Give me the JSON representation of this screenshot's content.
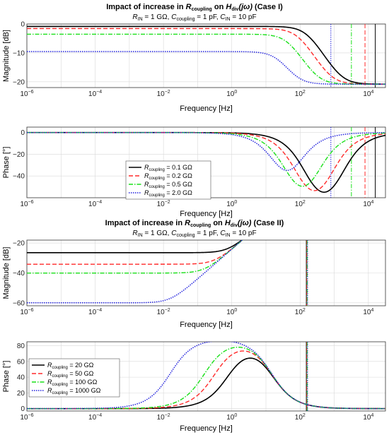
{
  "chart_data": [
    {
      "type": "line",
      "title_html": "Impact of increase in <tspan font-style='italic'>R</tspan><tspan font-size='7' dy='2'>coupling</tspan><tspan dy='-2'> on </tspan><tspan font-style='italic'>H</tspan><tspan font-size='7' dy='2'>div</tspan><tspan dy='-2' font-style='italic'>(jω)</tspan><tspan> (Case I)</tspan>",
      "subtitle_html": "<tspan font-style='italic'>R</tspan><tspan font-size='7' dy='2'>IN</tspan><tspan dy='-2'> = 1 GΩ, </tspan><tspan font-style='italic'>C</tspan><tspan font-size='7' dy='2'>coupling</tspan><tspan dy='-2'> = 1 pF, </tspan><tspan font-style='italic'>C</tspan><tspan font-size='7' dy='2'>IN</tspan><tspan dy='-2'> = 10 pF</tspan>",
      "xlabel": "Frequency [Hz]",
      "ylabel": "Magnitude [dB]",
      "xscale": "log",
      "xlim": [
        1e-06,
        31623
      ],
      "ylim": [
        -22,
        0
      ],
      "xticks": [
        -6,
        -4,
        -2,
        0,
        2,
        4
      ],
      "yticks": [
        -20,
        -10,
        0
      ],
      "grid": true,
      "kind": "mag1",
      "vlines": [
        15915,
        7958,
        3183,
        796
      ],
      "series": [
        {
          "color": "#000000",
          "dash": "",
          "width": 1.6,
          "R": 0.1
        },
        {
          "color": "#ff2a2a",
          "dash": "6,3",
          "width": 1.4,
          "R": 0.2
        },
        {
          "color": "#19e019",
          "dash": "6,2,1.5,2",
          "width": 1.4,
          "R": 0.5
        },
        {
          "color": "#2222dd",
          "dash": "1.5,1.5",
          "width": 1.5,
          "R": 2.0
        }
      ]
    },
    {
      "type": "line",
      "xlabel": "Frequency [Hz]",
      "ylabel": "Phase [°]",
      "xscale": "log",
      "xlim": [
        1e-06,
        31623
      ],
      "ylim": [
        -60,
        5
      ],
      "xticks": [
        -6,
        -4,
        -2,
        0,
        2,
        4
      ],
      "yticks": [
        -40,
        -20,
        0
      ],
      "grid": true,
      "kind": "ph1",
      "legend": "upper-left-center",
      "vlines": [
        15915,
        7958,
        3183,
        796
      ],
      "series": [
        {
          "name_html": "<tspan font-style='italic'>R</tspan><tspan font-size='6' dy='2'>coupling</tspan><tspan dy='-2'> = 0.1 GΩ</tspan>",
          "color": "#000000",
          "dash": "",
          "width": 1.6,
          "R": 0.1
        },
        {
          "name_html": "<tspan font-style='italic'>R</tspan><tspan font-size='6' dy='2'>coupling</tspan><tspan dy='-2'> = 0.2 GΩ</tspan>",
          "color": "#ff2a2a",
          "dash": "6,3",
          "width": 1.4,
          "R": 0.2
        },
        {
          "name_html": "<tspan font-style='italic'>R</tspan><tspan font-size='6' dy='2'>coupling</tspan><tspan dy='-2'> = 0.5 GΩ</tspan>",
          "color": "#19e019",
          "dash": "6,2,1.5,2",
          "width": 1.4,
          "R": 0.5
        },
        {
          "name_html": "<tspan font-style='italic'>R</tspan><tspan font-size='6' dy='2'>coupling</tspan><tspan dy='-2'> = 2.0 GΩ</tspan>",
          "color": "#2222dd",
          "dash": "1.5,1.5",
          "width": 1.5,
          "R": 2.0
        }
      ]
    },
    {
      "type": "line",
      "title_html": "Impact of increase in <tspan font-style='italic'>R</tspan><tspan font-size='7' dy='2'>coupling</tspan><tspan dy='-2'> on </tspan><tspan font-style='italic'>H</tspan><tspan font-size='7' dy='2'>div</tspan><tspan dy='-2' font-style='italic'>(jω)</tspan><tspan> (Case II)</tspan>",
      "subtitle_html": "<tspan font-style='italic'>R</tspan><tspan font-size='7' dy='2'>IN</tspan><tspan dy='-2'> = 1 GΩ, </tspan><tspan font-style='italic'>C</tspan><tspan font-size='7' dy='2'>coupling</tspan><tspan dy='-2'> = 1 pF, </tspan><tspan font-style='italic'>C</tspan><tspan font-size='7' dy='2'>IN</tspan><tspan dy='-2'> = 10 pF</tspan>",
      "xlabel": "Frequency [Hz]",
      "ylabel": "Magnitude [dB]",
      "xscale": "log",
      "xlim": [
        1e-06,
        31623
      ],
      "ylim": [
        -62,
        -18
      ],
      "xticks": [
        -6,
        -4,
        -2,
        0,
        2,
        4
      ],
      "yticks": [
        -60,
        -40,
        -20
      ],
      "grid": true,
      "kind": "mag2",
      "vlines": [
        159,
        159,
        159,
        159
      ],
      "series": [
        {
          "color": "#000000",
          "dash": "",
          "width": 1.6,
          "R": 20
        },
        {
          "color": "#ff2a2a",
          "dash": "6,3",
          "width": 1.4,
          "R": 50
        },
        {
          "color": "#19e019",
          "dash": "6,2,1.5,2",
          "width": 1.4,
          "R": 100
        },
        {
          "color": "#2222dd",
          "dash": "1.5,1.5",
          "width": 1.5,
          "R": 1000
        }
      ]
    },
    {
      "type": "line",
      "xlabel": "Frequency [Hz]",
      "ylabel": "Phase [°]",
      "xscale": "log",
      "xlim": [
        1e-06,
        31623
      ],
      "ylim": [
        -3,
        85
      ],
      "xticks": [
        -6,
        -4,
        -2,
        0,
        2,
        4
      ],
      "yticks": [
        0,
        20,
        40,
        60,
        80
      ],
      "grid": true,
      "kind": "ph2",
      "legend": "upper-left",
      "vlines": [
        159,
        159,
        159,
        159
      ],
      "series": [
        {
          "name_html": "<tspan font-style='italic'>R</tspan><tspan font-size='6' dy='2'>coupling</tspan><tspan dy='-2'> = 20 GΩ</tspan>",
          "color": "#000000",
          "dash": "",
          "width": 1.6,
          "R": 20
        },
        {
          "name_html": "<tspan font-style='italic'>R</tspan><tspan font-size='6' dy='2'>coupling</tspan><tspan dy='-2'> = 50 GΩ</tspan>",
          "color": "#ff2a2a",
          "dash": "6,3",
          "width": 1.4,
          "R": 50
        },
        {
          "name_html": "<tspan font-style='italic'>R</tspan><tspan font-size='6' dy='2'>coupling</tspan><tspan dy='-2'> = 100 GΩ</tspan>",
          "color": "#19e019",
          "dash": "6,2,1.5,2",
          "width": 1.4,
          "R": 100
        },
        {
          "name_html": "<tspan font-style='italic'>R</tspan><tspan font-size='6' dy='2'>coupling</tspan><tspan dy='-2'> = 1000 GΩ</tspan>",
          "color": "#2222dd",
          "dash": "1.5,1.5",
          "width": 1.5,
          "R": 1000
        }
      ]
    }
  ]
}
